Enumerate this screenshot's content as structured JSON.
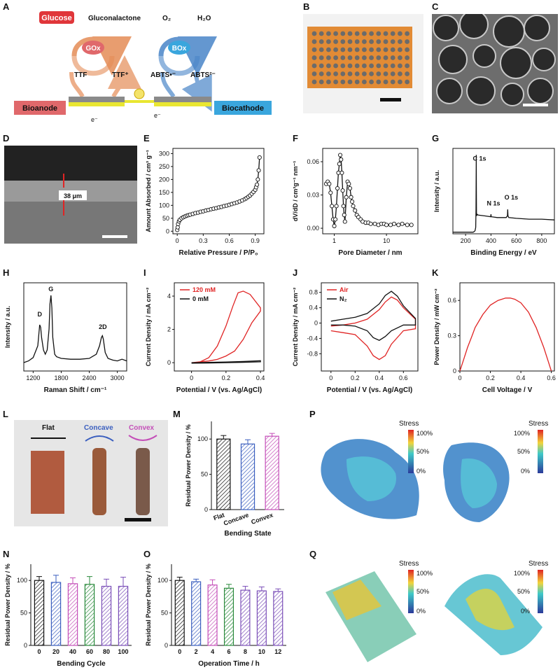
{
  "panel_labels": [
    "A",
    "B",
    "C",
    "D",
    "E",
    "F",
    "G",
    "H",
    "I",
    "J",
    "K",
    "L",
    "M",
    "N",
    "O",
    "P",
    "Q"
  ],
  "schematic": {
    "glucose": "Glucose",
    "gluconalactone": "Gluconalactone",
    "gox": "GOx",
    "tff": "TTF",
    "tffplus": "TTF⁺",
    "o2": "O₂",
    "h2o": "H₂O",
    "box": "BOx",
    "abts_red": "ABTS•⁻",
    "abts_ox": "ABTS²⁻",
    "bioanode": "Bioanode",
    "biocathode": "Biocathode",
    "electron": "e⁻",
    "colors": {
      "anode_box": "#e0686b",
      "cathode_box": "#3aa6dd",
      "anode_arrow": "#e58c57",
      "cathode_arrow": "#4a86c8",
      "glucose_box": "#e0363a"
    }
  },
  "photo_d_label": "38 μm",
  "photo_l": {
    "flat": "Flat",
    "concave": "Concave",
    "convex": "Convex"
  },
  "sim": {
    "title": "Stress",
    "ticks": [
      "100%",
      "50%",
      "0%"
    ]
  },
  "chart_data": [
    {
      "id": "E",
      "type": "scatter",
      "xlabel": "Relative Pressure / P/P₀",
      "ylabel": "Amount Absorbed / cm³ g⁻¹",
      "xlim": [
        -0.05,
        1.0
      ],
      "ylim": [
        -10,
        320
      ],
      "xticks": [
        0.0,
        0.3,
        0.6,
        0.9
      ],
      "yticks": [
        0,
        50,
        100,
        150,
        200,
        250,
        300
      ],
      "series": [
        {
          "x": [
            0.0,
            0.005,
            0.01,
            0.02,
            0.03,
            0.05,
            0.07,
            0.09,
            0.11,
            0.13,
            0.15,
            0.18,
            0.21,
            0.24,
            0.27,
            0.3,
            0.33,
            0.36,
            0.39,
            0.42,
            0.45,
            0.48,
            0.51,
            0.54,
            0.57,
            0.6,
            0.63,
            0.66,
            0.69,
            0.72,
            0.75,
            0.78,
            0.8,
            0.82,
            0.84,
            0.86,
            0.88,
            0.9,
            0.91,
            0.92,
            0.93,
            0.94,
            0.95
          ],
          "y": [
            5,
            15,
            28,
            38,
            44,
            50,
            54,
            57,
            60,
            62,
            64,
            67,
            70,
            72,
            75,
            77,
            80,
            82,
            85,
            87,
            89,
            92,
            94,
            97,
            99,
            102,
            105,
            108,
            111,
            115,
            119,
            124,
            128,
            133,
            138,
            145,
            152,
            160,
            170,
            180,
            200,
            235,
            285
          ]
        }
      ]
    },
    {
      "id": "F",
      "type": "line",
      "xlabel": "Pore Diameter / nm",
      "ylabel": "dV/dD / cm³g⁻¹ nm⁻¹",
      "xscale": "log",
      "xlim": [
        0.6,
        40
      ],
      "ylim": [
        -0.005,
        0.072
      ],
      "xticks": [
        1,
        10
      ],
      "yticks": [
        0.0,
        0.03,
        0.06
      ],
      "ytick_labels": [
        "0.00",
        "0.03",
        "0.06"
      ],
      "series": [
        {
          "x": [
            0.7,
            0.75,
            0.8,
            0.85,
            0.9,
            0.95,
            1.0,
            1.05,
            1.1,
            1.15,
            1.2,
            1.25,
            1.3,
            1.35,
            1.4,
            1.45,
            1.5,
            1.55,
            1.6,
            1.7,
            1.8,
            1.9,
            2.0,
            2.1,
            2.2,
            2.3,
            2.5,
            2.7,
            2.9,
            3.2,
            3.5,
            4,
            4.5,
            5,
            6,
            7,
            8,
            9,
            10,
            12,
            14,
            17,
            20,
            25,
            30
          ],
          "y": [
            0.04,
            0.042,
            0.04,
            0.032,
            0.02,
            0.008,
            0.002,
            0.008,
            0.02,
            0.036,
            0.05,
            0.058,
            0.066,
            0.062,
            0.05,
            0.034,
            0.02,
            0.012,
            0.006,
            0.028,
            0.042,
            0.04,
            0.036,
            0.028,
            0.024,
            0.02,
            0.016,
            0.012,
            0.01,
            0.008,
            0.006,
            0.005,
            0.005,
            0.004,
            0.004,
            0.003,
            0.004,
            0.004,
            0.003,
            0.003,
            0.004,
            0.003,
            0.004,
            0.003,
            0.003
          ]
        }
      ]
    },
    {
      "id": "G",
      "type": "line",
      "xlabel": "Binding Energy / eV",
      "ylabel": "Intensity / a.u.",
      "xlim": [
        100,
        900
      ],
      "ylim": [
        0,
        1.05
      ],
      "xticks": [
        200,
        400,
        600,
        800
      ],
      "annotations": [
        "C 1s",
        "N 1s",
        "O 1s"
      ],
      "series": [
        {
          "x": [
            100,
            200,
            260,
            270,
            275,
            280,
            282,
            284,
            285,
            286,
            288,
            290,
            300,
            350,
            398,
            400,
            402,
            450,
            520,
            530,
            532,
            534,
            540,
            600,
            700,
            800,
            900
          ],
          "y": [
            0.02,
            0.02,
            0.02,
            0.03,
            0.04,
            0.08,
            0.3,
            0.97,
            0.6,
            0.26,
            0.22,
            0.24,
            0.23,
            0.22,
            0.21,
            0.24,
            0.21,
            0.2,
            0.2,
            0.22,
            0.3,
            0.22,
            0.2,
            0.19,
            0.18,
            0.18,
            0.17
          ]
        }
      ]
    },
    {
      "id": "H",
      "type": "line",
      "xlabel": "Raman Shift / cm⁻¹",
      "ylabel": "Intensity / a.u.",
      "xlim": [
        1000,
        3200
      ],
      "ylim": [
        0,
        1.05
      ],
      "xticks": [
        1200,
        1800,
        2400,
        3000
      ],
      "annotations": [
        "D",
        "G",
        "2D"
      ],
      "series": [
        {
          "x": [
            1000,
            1100,
            1200,
            1300,
            1340,
            1360,
            1380,
            1420,
            1460,
            1500,
            1540,
            1560,
            1580,
            1600,
            1620,
            1660,
            1700,
            1800,
            2000,
            2200,
            2400,
            2550,
            2620,
            2660,
            2680,
            2700,
            2740,
            2800,
            2900,
            3000,
            3100,
            3200
          ],
          "y": [
            0.1,
            0.12,
            0.16,
            0.3,
            0.55,
            0.52,
            0.4,
            0.25,
            0.2,
            0.25,
            0.5,
            0.8,
            0.9,
            0.75,
            0.4,
            0.2,
            0.17,
            0.15,
            0.14,
            0.14,
            0.15,
            0.2,
            0.3,
            0.4,
            0.42,
            0.38,
            0.22,
            0.15,
            0.13,
            0.12,
            0.14,
            0.12
          ]
        }
      ]
    },
    {
      "id": "I",
      "type": "line",
      "xlabel": "Potential / V (vs. Ag/AgCl)",
      "ylabel": "Current Density / mA cm⁻²",
      "xlim": [
        -0.1,
        0.42
      ],
      "ylim": [
        -0.5,
        4.8
      ],
      "xticks": [
        0.0,
        0.2,
        0.4
      ],
      "yticks": [
        0,
        2,
        4
      ],
      "legend": [
        "120 mM",
        "0 mM"
      ],
      "series": [
        {
          "name": "120 mM",
          "color": "#e02424",
          "x": [
            0.0,
            0.05,
            0.1,
            0.15,
            0.2,
            0.24,
            0.27,
            0.3,
            0.34,
            0.4,
            0.4,
            0.35,
            0.3,
            0.25,
            0.2,
            0.15,
            0.1,
            0.05,
            0.0
          ],
          "y": [
            0.0,
            0.05,
            0.3,
            1.0,
            2.2,
            3.4,
            4.2,
            4.3,
            4.1,
            3.3,
            3.1,
            2.4,
            1.4,
            0.7,
            0.4,
            0.2,
            0.1,
            0.05,
            0.0
          ]
        },
        {
          "name": "0 mM",
          "color": "#111111",
          "x": [
            0.0,
            0.1,
            0.2,
            0.3,
            0.4,
            0.4,
            0.3,
            0.2,
            0.1,
            0.0
          ],
          "y": [
            0.0,
            0.02,
            0.04,
            0.07,
            0.12,
            0.05,
            0.02,
            0.0,
            -0.02,
            -0.03
          ]
        }
      ]
    },
    {
      "id": "J",
      "type": "line",
      "xlabel": "Potential / V (vs. Ag/AgCl)",
      "ylabel": "Current Density / mA cm⁻²",
      "xlim": [
        -0.08,
        0.72
      ],
      "ylim": [
        -1.25,
        1.05
      ],
      "xticks": [
        0.0,
        0.2,
        0.4,
        0.6
      ],
      "yticks": [
        -0.8,
        -0.4,
        0.0,
        0.4,
        0.8
      ],
      "legend": [
        "Air",
        "N₂"
      ],
      "series": [
        {
          "name": "Air",
          "color": "#e02424",
          "x": [
            0.0,
            0.1,
            0.2,
            0.3,
            0.4,
            0.45,
            0.5,
            0.55,
            0.6,
            0.7,
            0.7,
            0.6,
            0.5,
            0.45,
            0.4,
            0.35,
            0.3,
            0.2,
            0.1,
            0.0
          ],
          "y": [
            -0.08,
            -0.05,
            0.0,
            0.1,
            0.35,
            0.55,
            0.68,
            0.6,
            0.4,
            0.1,
            -0.15,
            -0.2,
            -0.55,
            -0.85,
            -0.95,
            -0.85,
            -0.6,
            -0.3,
            -0.25,
            -0.2
          ]
        },
        {
          "name": "N₂",
          "color": "#111111",
          "x": [
            0.0,
            0.1,
            0.2,
            0.3,
            0.4,
            0.45,
            0.5,
            0.55,
            0.6,
            0.7,
            0.7,
            0.6,
            0.5,
            0.45,
            0.4,
            0.35,
            0.3,
            0.2,
            0.1,
            0.0
          ],
          "y": [
            0.05,
            0.1,
            0.15,
            0.25,
            0.5,
            0.72,
            0.83,
            0.7,
            0.45,
            0.12,
            -0.05,
            -0.05,
            -0.2,
            -0.35,
            -0.45,
            -0.38,
            -0.2,
            -0.08,
            -0.05,
            -0.05
          ]
        }
      ]
    },
    {
      "id": "K",
      "type": "line",
      "xlabel": "Cell Voltage / V",
      "ylabel": "Power Density / mW cm⁻²",
      "xlim": [
        0,
        0.62
      ],
      "ylim": [
        0,
        0.75
      ],
      "xticks": [
        0.0,
        0.2,
        0.4,
        0.6
      ],
      "yticks": [
        0.0,
        0.3,
        0.6
      ],
      "series": [
        {
          "color": "#e02424",
          "x": [
            0.0,
            0.02,
            0.05,
            0.08,
            0.1,
            0.15,
            0.2,
            0.25,
            0.3,
            0.33,
            0.36,
            0.4,
            0.45,
            0.5,
            0.55,
            0.58,
            0.6
          ],
          "y": [
            0.0,
            0.08,
            0.2,
            0.3,
            0.37,
            0.48,
            0.56,
            0.6,
            0.62,
            0.62,
            0.61,
            0.58,
            0.5,
            0.37,
            0.2,
            0.08,
            0.0
          ]
        }
      ]
    },
    {
      "id": "M",
      "type": "bar",
      "xlabel": "Bending State",
      "ylabel": "Residual Power Density / %",
      "categories": [
        "Flat",
        "Concave",
        "Convex"
      ],
      "values": [
        100,
        93,
        104
      ],
      "errors": [
        5,
        6,
        4
      ],
      "colors": [
        "#111111",
        "#3b5fbf",
        "#c44fb8"
      ],
      "ylim": [
        0,
        125
      ],
      "yticks": [
        0,
        50,
        100
      ]
    },
    {
      "id": "N",
      "type": "bar",
      "xlabel": "Bending Cycle",
      "ylabel": "Residual Power Density / %",
      "categories": [
        "0",
        "20",
        "40",
        "60",
        "80",
        "100"
      ],
      "values": [
        100,
        97,
        95,
        94,
        91,
        91
      ],
      "errors": [
        6,
        11,
        9,
        12,
        11,
        14
      ],
      "colors": [
        "#111111",
        "#3b5fbf",
        "#c44fb8",
        "#2a8a3c",
        "#7b4fb8",
        "#7b4fb8"
      ],
      "ylim": [
        0,
        125
      ],
      "yticks": [
        0,
        50,
        100
      ]
    },
    {
      "id": "O",
      "type": "bar",
      "xlabel": "Operation Time / h",
      "ylabel": "Residual Power Density / %",
      "categories": [
        "0",
        "2",
        "4",
        "6",
        "8",
        "10",
        "12"
      ],
      "values": [
        100,
        98,
        93,
        88,
        85,
        84,
        83
      ],
      "errors": [
        5,
        4,
        8,
        6,
        6,
        6,
        4
      ],
      "colors": [
        "#111111",
        "#3b5fbf",
        "#c44fb8",
        "#2a8a3c",
        "#7b4fb8",
        "#7b4fb8",
        "#7b4fb8"
      ],
      "ylim": [
        0,
        125
      ],
      "yticks": [
        0,
        50,
        100
      ]
    }
  ]
}
